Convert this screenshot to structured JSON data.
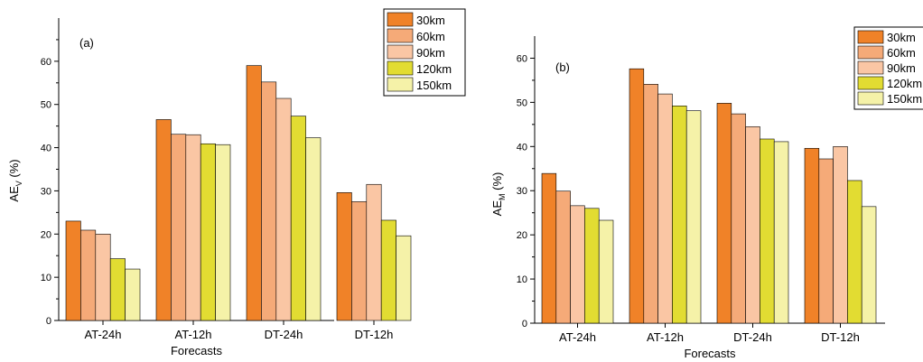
{
  "chart_data": [
    {
      "type": "bar",
      "panel_label": "(a)",
      "categories": [
        "AT-24h",
        "AT-12h",
        "DT-24h",
        "DT-12h"
      ],
      "series": [
        {
          "name": "30km",
          "color": "#f08228",
          "values": [
            23.0,
            46.5,
            59.0,
            29.6
          ]
        },
        {
          "name": "60km",
          "color": "#f5aa78",
          "values": [
            20.9,
            43.1,
            55.2,
            27.5
          ]
        },
        {
          "name": "90km",
          "color": "#fac6a4",
          "values": [
            20.0,
            43.0,
            51.4,
            31.5
          ]
        },
        {
          "name": "120km",
          "color": "#e2dc32",
          "values": [
            14.3,
            40.9,
            47.3,
            23.2
          ]
        },
        {
          "name": "150km",
          "color": "#f5f2a8",
          "values": [
            11.9,
            40.7,
            42.3,
            19.6
          ]
        }
      ],
      "xlabel": "Forecasts",
      "ylabel_main": "AE",
      "ylabel_sub": "V",
      "ylabel_unit": "(%)",
      "ylim": [
        0,
        70
      ],
      "yticks": [
        0,
        10,
        20,
        30,
        40,
        50,
        60
      ],
      "legend": "top-right",
      "grid": false
    },
    {
      "type": "bar",
      "panel_label": "(b)",
      "categories": [
        "AT-24h",
        "AT-12h",
        "DT-24h",
        "DT-12h"
      ],
      "series": [
        {
          "name": "30km",
          "color": "#f08228",
          "values": [
            33.9,
            57.6,
            49.8,
            39.6
          ]
        },
        {
          "name": "60km",
          "color": "#f5aa78",
          "values": [
            29.9,
            54.1,
            47.4,
            37.2
          ]
        },
        {
          "name": "90km",
          "color": "#fac6a4",
          "values": [
            26.6,
            51.9,
            44.5,
            40.0
          ]
        },
        {
          "name": "120km",
          "color": "#e2dc32",
          "values": [
            26.0,
            49.2,
            41.7,
            32.3
          ]
        },
        {
          "name": "150km",
          "color": "#f5f2a8",
          "values": [
            23.3,
            48.1,
            41.1,
            26.4
          ]
        }
      ],
      "xlabel": "Forecasts",
      "ylabel_main": "AE",
      "ylabel_sub": "M",
      "ylabel_unit": "(%)",
      "ylim": [
        0,
        65
      ],
      "yticks": [
        0,
        10,
        20,
        30,
        40,
        50,
        60
      ],
      "legend": "top-right",
      "grid": false
    }
  ]
}
